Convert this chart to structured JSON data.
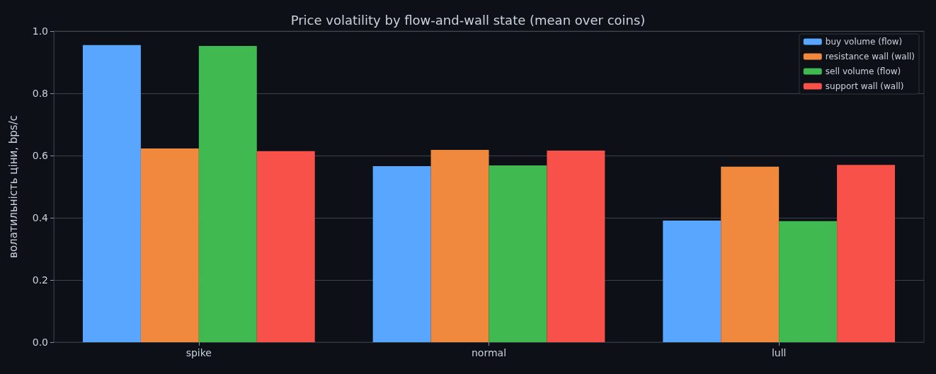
{
  "chart_data": {
    "type": "bar",
    "title": "Price volatility by flow-and-wall state (mean over coins)",
    "ylabel": "волатильність ціни, bps/c",
    "categories": [
      "spike",
      "normal",
      "lull"
    ],
    "series": [
      {
        "name": "buy volume (flow)",
        "color": "#58a6ff",
        "values": [
          0.955,
          0.566,
          0.391
        ]
      },
      {
        "name": "resistance wall (wall)",
        "color": "#f0883e",
        "values": [
          0.623,
          0.618,
          0.564
        ]
      },
      {
        "name": "sell volume (flow)",
        "color": "#3fb950",
        "values": [
          0.952,
          0.568,
          0.389
        ]
      },
      {
        "name": "support wall (wall)",
        "color": "#f85149",
        "values": [
          0.614,
          0.616,
          0.57
        ]
      }
    ],
    "ylim": [
      0,
      1
    ],
    "yticks": [
      {
        "value": 0,
        "label": "0.0"
      },
      {
        "value": 0.2,
        "label": "0.2"
      },
      {
        "value": 0.4,
        "label": "0.4"
      },
      {
        "value": 0.6,
        "label": "0.6"
      },
      {
        "value": 0.8,
        "label": "0.8"
      },
      {
        "value": 1,
        "label": "1.0"
      }
    ],
    "grid": "y",
    "legend": "top right"
  }
}
